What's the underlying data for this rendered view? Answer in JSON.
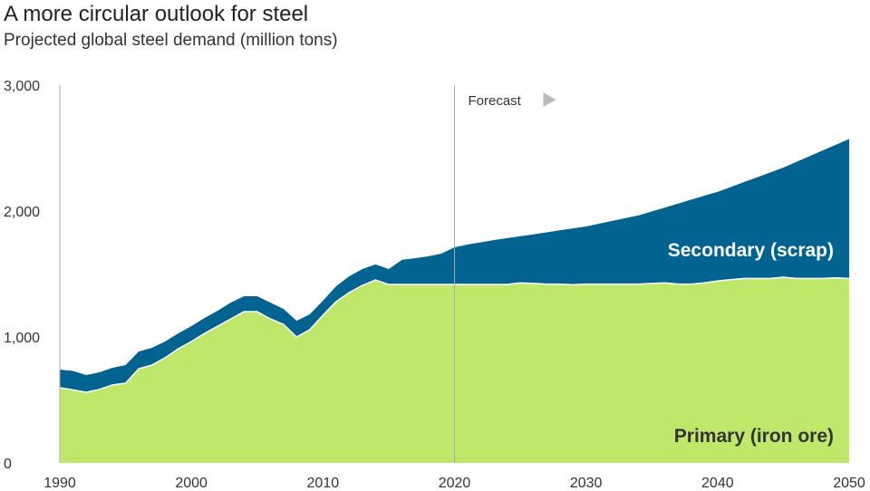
{
  "chart_data": {
    "type": "area",
    "stacked": true,
    "title": "A more circular outlook for steel",
    "subtitle": "Projected global steel demand (million tons)",
    "xlabel": "",
    "ylabel": "",
    "xlim": [
      1990,
      2050
    ],
    "ylim": [
      0,
      3000
    ],
    "x_ticks": [
      "1990",
      "2000",
      "2010",
      "2020",
      "2030",
      "2040",
      "2050"
    ],
    "y_ticks": [
      "0",
      "1,000",
      "2,000",
      "3,000"
    ],
    "grid": false,
    "annotation": "Forecast",
    "forecast_start": 2020,
    "x": [
      1990,
      1991,
      1992,
      1993,
      1994,
      1995,
      1996,
      1997,
      1998,
      1999,
      2000,
      2001,
      2002,
      2003,
      2004,
      2005,
      2006,
      2007,
      2008,
      2009,
      2010,
      2011,
      2012,
      2013,
      2014,
      2015,
      2016,
      2017,
      2018,
      2019,
      2020,
      2021,
      2022,
      2023,
      2024,
      2025,
      2026,
      2027,
      2028,
      2029,
      2030,
      2031,
      2032,
      2033,
      2034,
      2035,
      2036,
      2037,
      2038,
      2039,
      2040,
      2041,
      2042,
      2043,
      2044,
      2045,
      2046,
      2047,
      2048,
      2049,
      2050
    ],
    "series": [
      {
        "name": "Primary (iron ore)",
        "color": "#bfe86a",
        "label_color": "#333333",
        "values": [
          597,
          580,
          561,
          583,
          619,
          633,
          748,
          777,
          835,
          906,
          964,
          1029,
          1086,
          1144,
          1201,
          1201,
          1144,
          1101,
          1000,
          1058,
          1173,
          1281,
          1353,
          1410,
          1453,
          1417,
          1417,
          1417,
          1417,
          1417,
          1417,
          1417,
          1417,
          1417,
          1417,
          1430,
          1425,
          1420,
          1420,
          1415,
          1420,
          1420,
          1420,
          1420,
          1420,
          1425,
          1430,
          1420,
          1420,
          1430,
          1445,
          1455,
          1465,
          1465,
          1465,
          1475,
          1465,
          1465,
          1465,
          1470,
          1465
        ]
      },
      {
        "name": "Secondary (scrap)",
        "color": "#006390",
        "label_color": "#ffffff",
        "values": [
          144,
          150,
          137,
          136,
          136,
          144,
          137,
          137,
          129,
          123,
          122,
          122,
          123,
          129,
          123,
          123,
          129,
          122,
          129,
          122,
          115,
          122,
          129,
          130,
          123,
          123,
          195,
          209,
          223,
          245,
          295,
          318,
          335,
          353,
          368,
          370,
          390,
          411,
          427,
          447,
          458,
          480,
          502,
          524,
          546,
          572,
          598,
          639,
          671,
          692,
          708,
          736,
          765,
          803,
          842,
          870,
          926,
          971,
          1017,
          1057,
          1108
        ]
      }
    ]
  }
}
